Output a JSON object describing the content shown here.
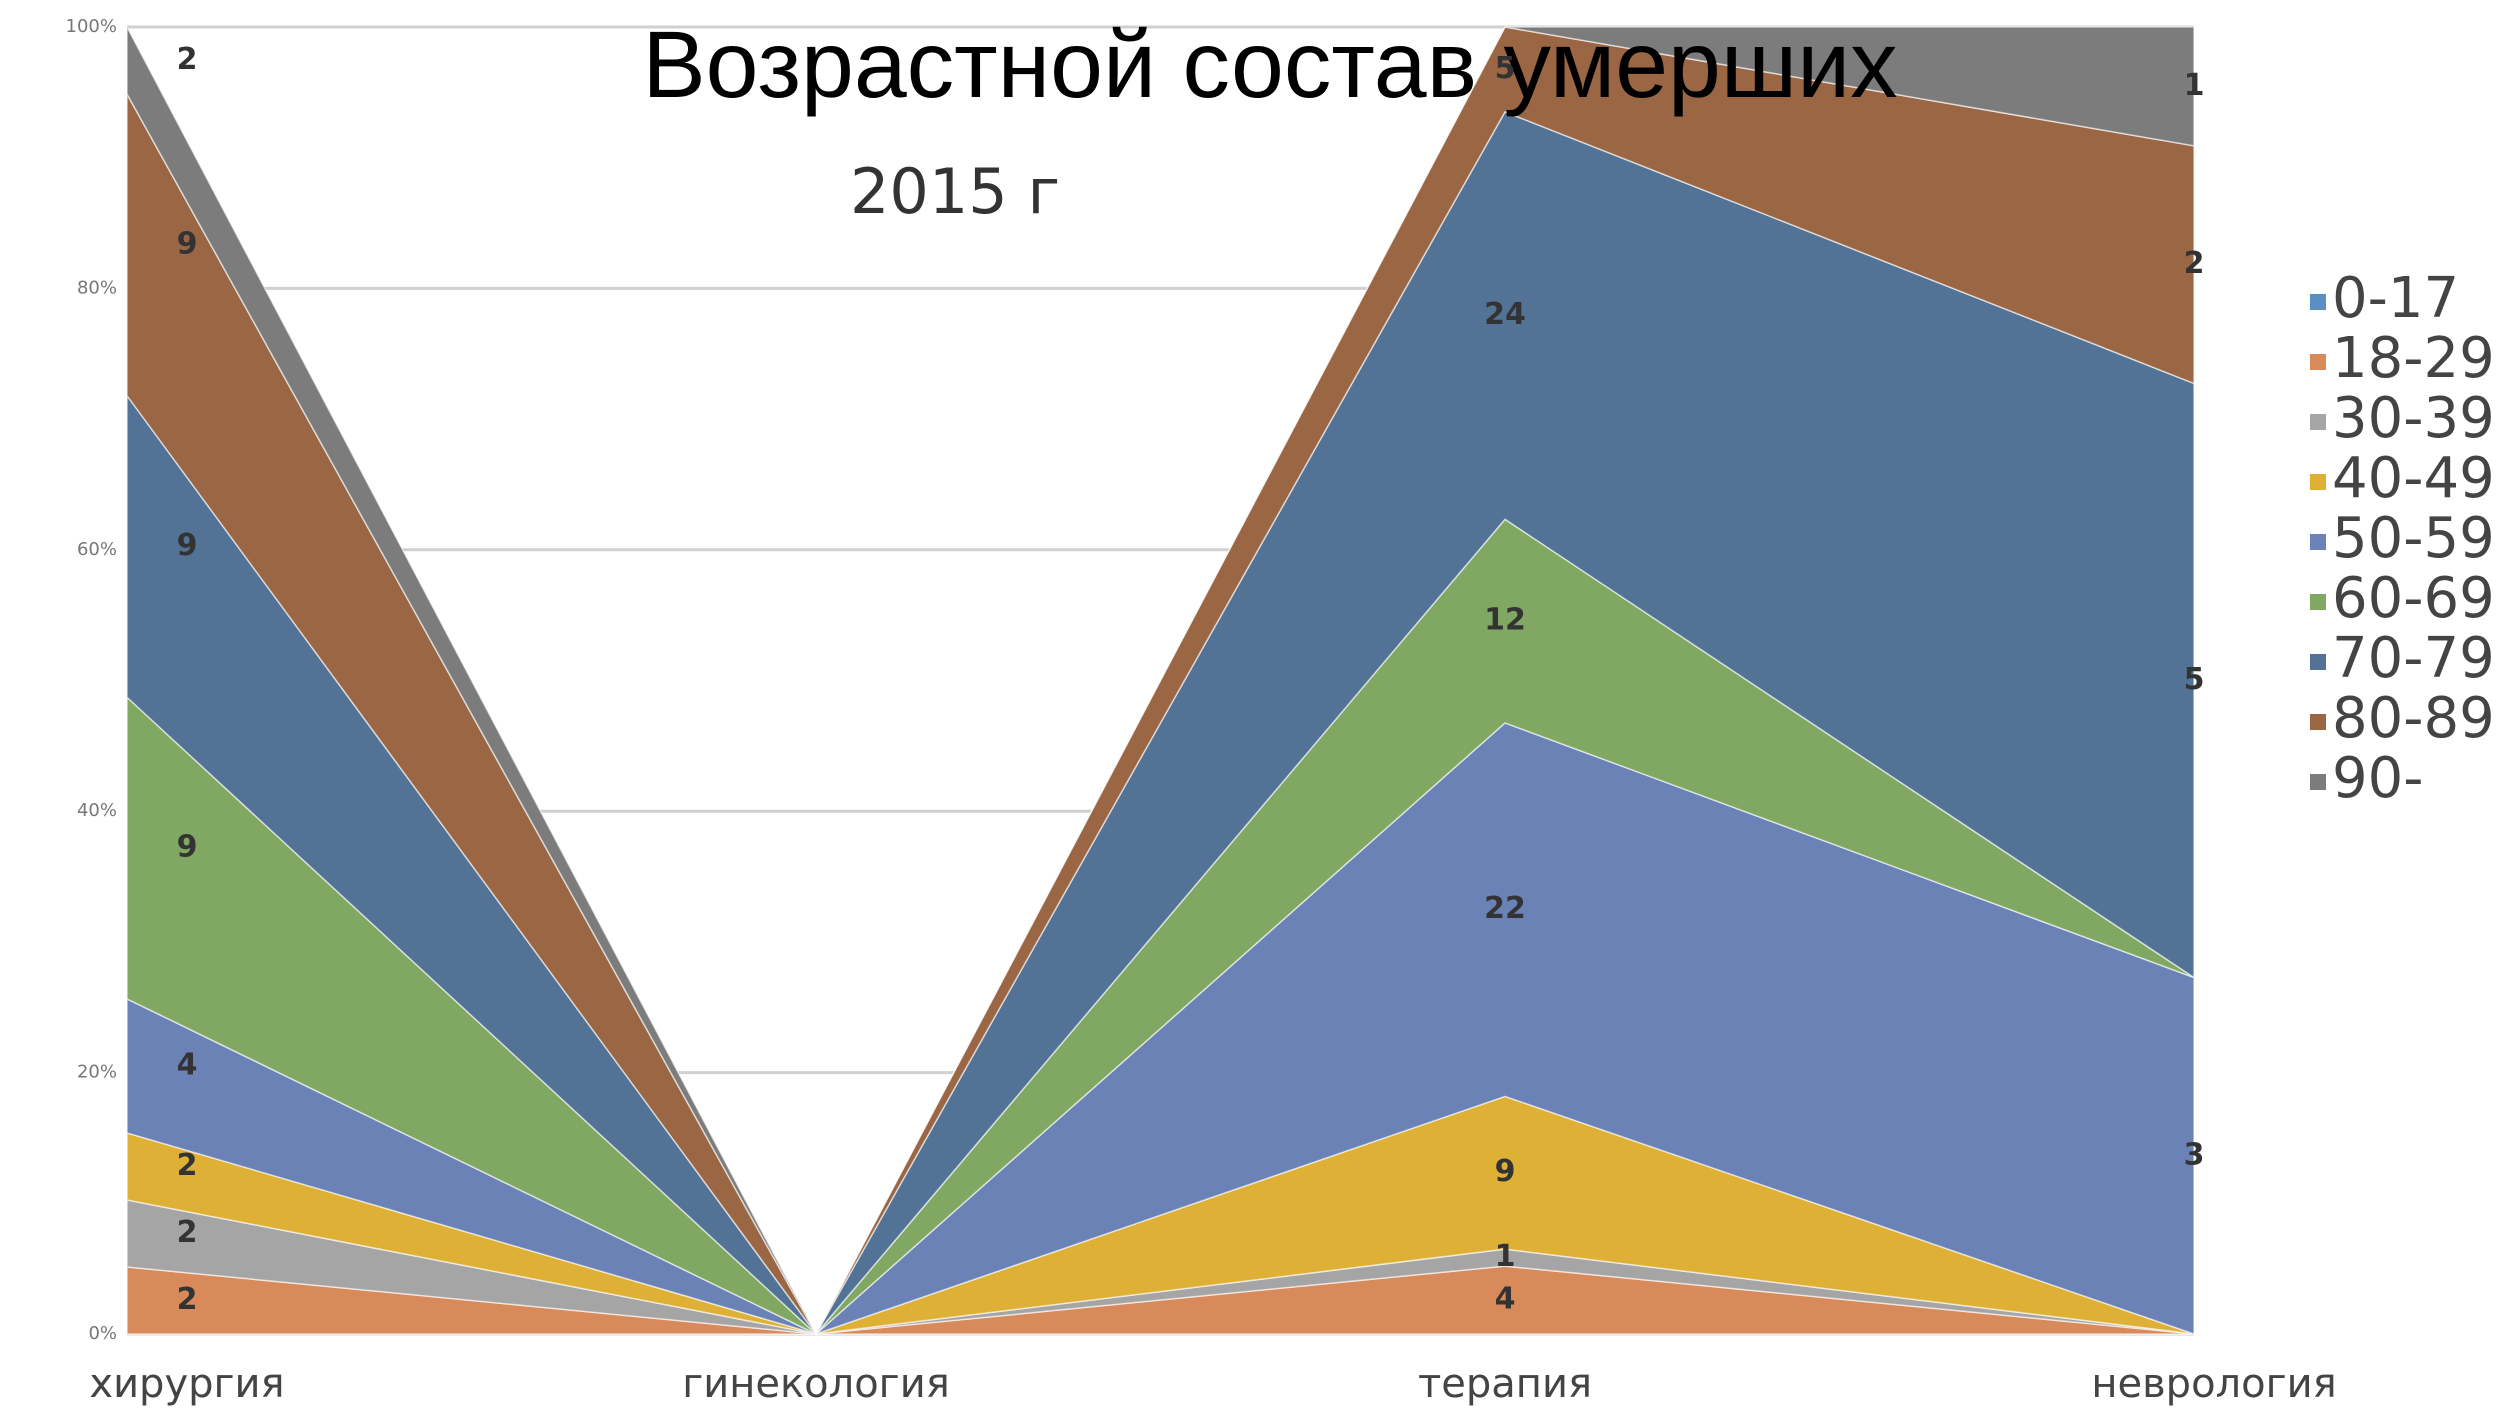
{
  "chart_data": {
    "type": "area",
    "stacked": "percent",
    "title": "Возрастной состав умерших",
    "subtitle": "2015 г",
    "categories": [
      "хирургия",
      "гинекология",
      "терапия",
      "неврология"
    ],
    "series": [
      {
        "name": "0-17",
        "color": "#5b8fc4",
        "values": [
          0,
          0,
          0,
          0
        ]
      },
      {
        "name": "18-29",
        "color": "#d98a5a",
        "values": [
          2,
          0,
          4,
          0
        ]
      },
      {
        "name": "30-39",
        "color": "#a5a5a5",
        "values": [
          2,
          0,
          1,
          0
        ]
      },
      {
        "name": "40-49",
        "color": "#deb036",
        "values": [
          2,
          0,
          9,
          0
        ]
      },
      {
        "name": "50-59",
        "color": "#6a82b6",
        "values": [
          4,
          0,
          22,
          3
        ]
      },
      {
        "name": "60-69",
        "color": "#80a862",
        "values": [
          9,
          0,
          12,
          0
        ]
      },
      {
        "name": "70-79",
        "color": "#527396",
        "values": [
          9,
          0,
          24,
          5
        ]
      },
      {
        "name": "80-89",
        "color": "#9a6644",
        "values": [
          9,
          0,
          5,
          2
        ]
      },
      {
        "name": "90-",
        "color": "#7c7c7c",
        "values": [
          2,
          0,
          0,
          1
        ]
      }
    ],
    "ylim": [
      0,
      100
    ],
    "yticks": [
      {
        "value": 0,
        "label": "0%"
      },
      {
        "value": 20,
        "label": "20%"
      },
      {
        "value": 40,
        "label": "40%"
      },
      {
        "value": 60,
        "label": "60%"
      },
      {
        "value": 80,
        "label": "80%"
      },
      {
        "value": 100,
        "label": "100%"
      }
    ],
    "grid": true,
    "legend": "right"
  }
}
